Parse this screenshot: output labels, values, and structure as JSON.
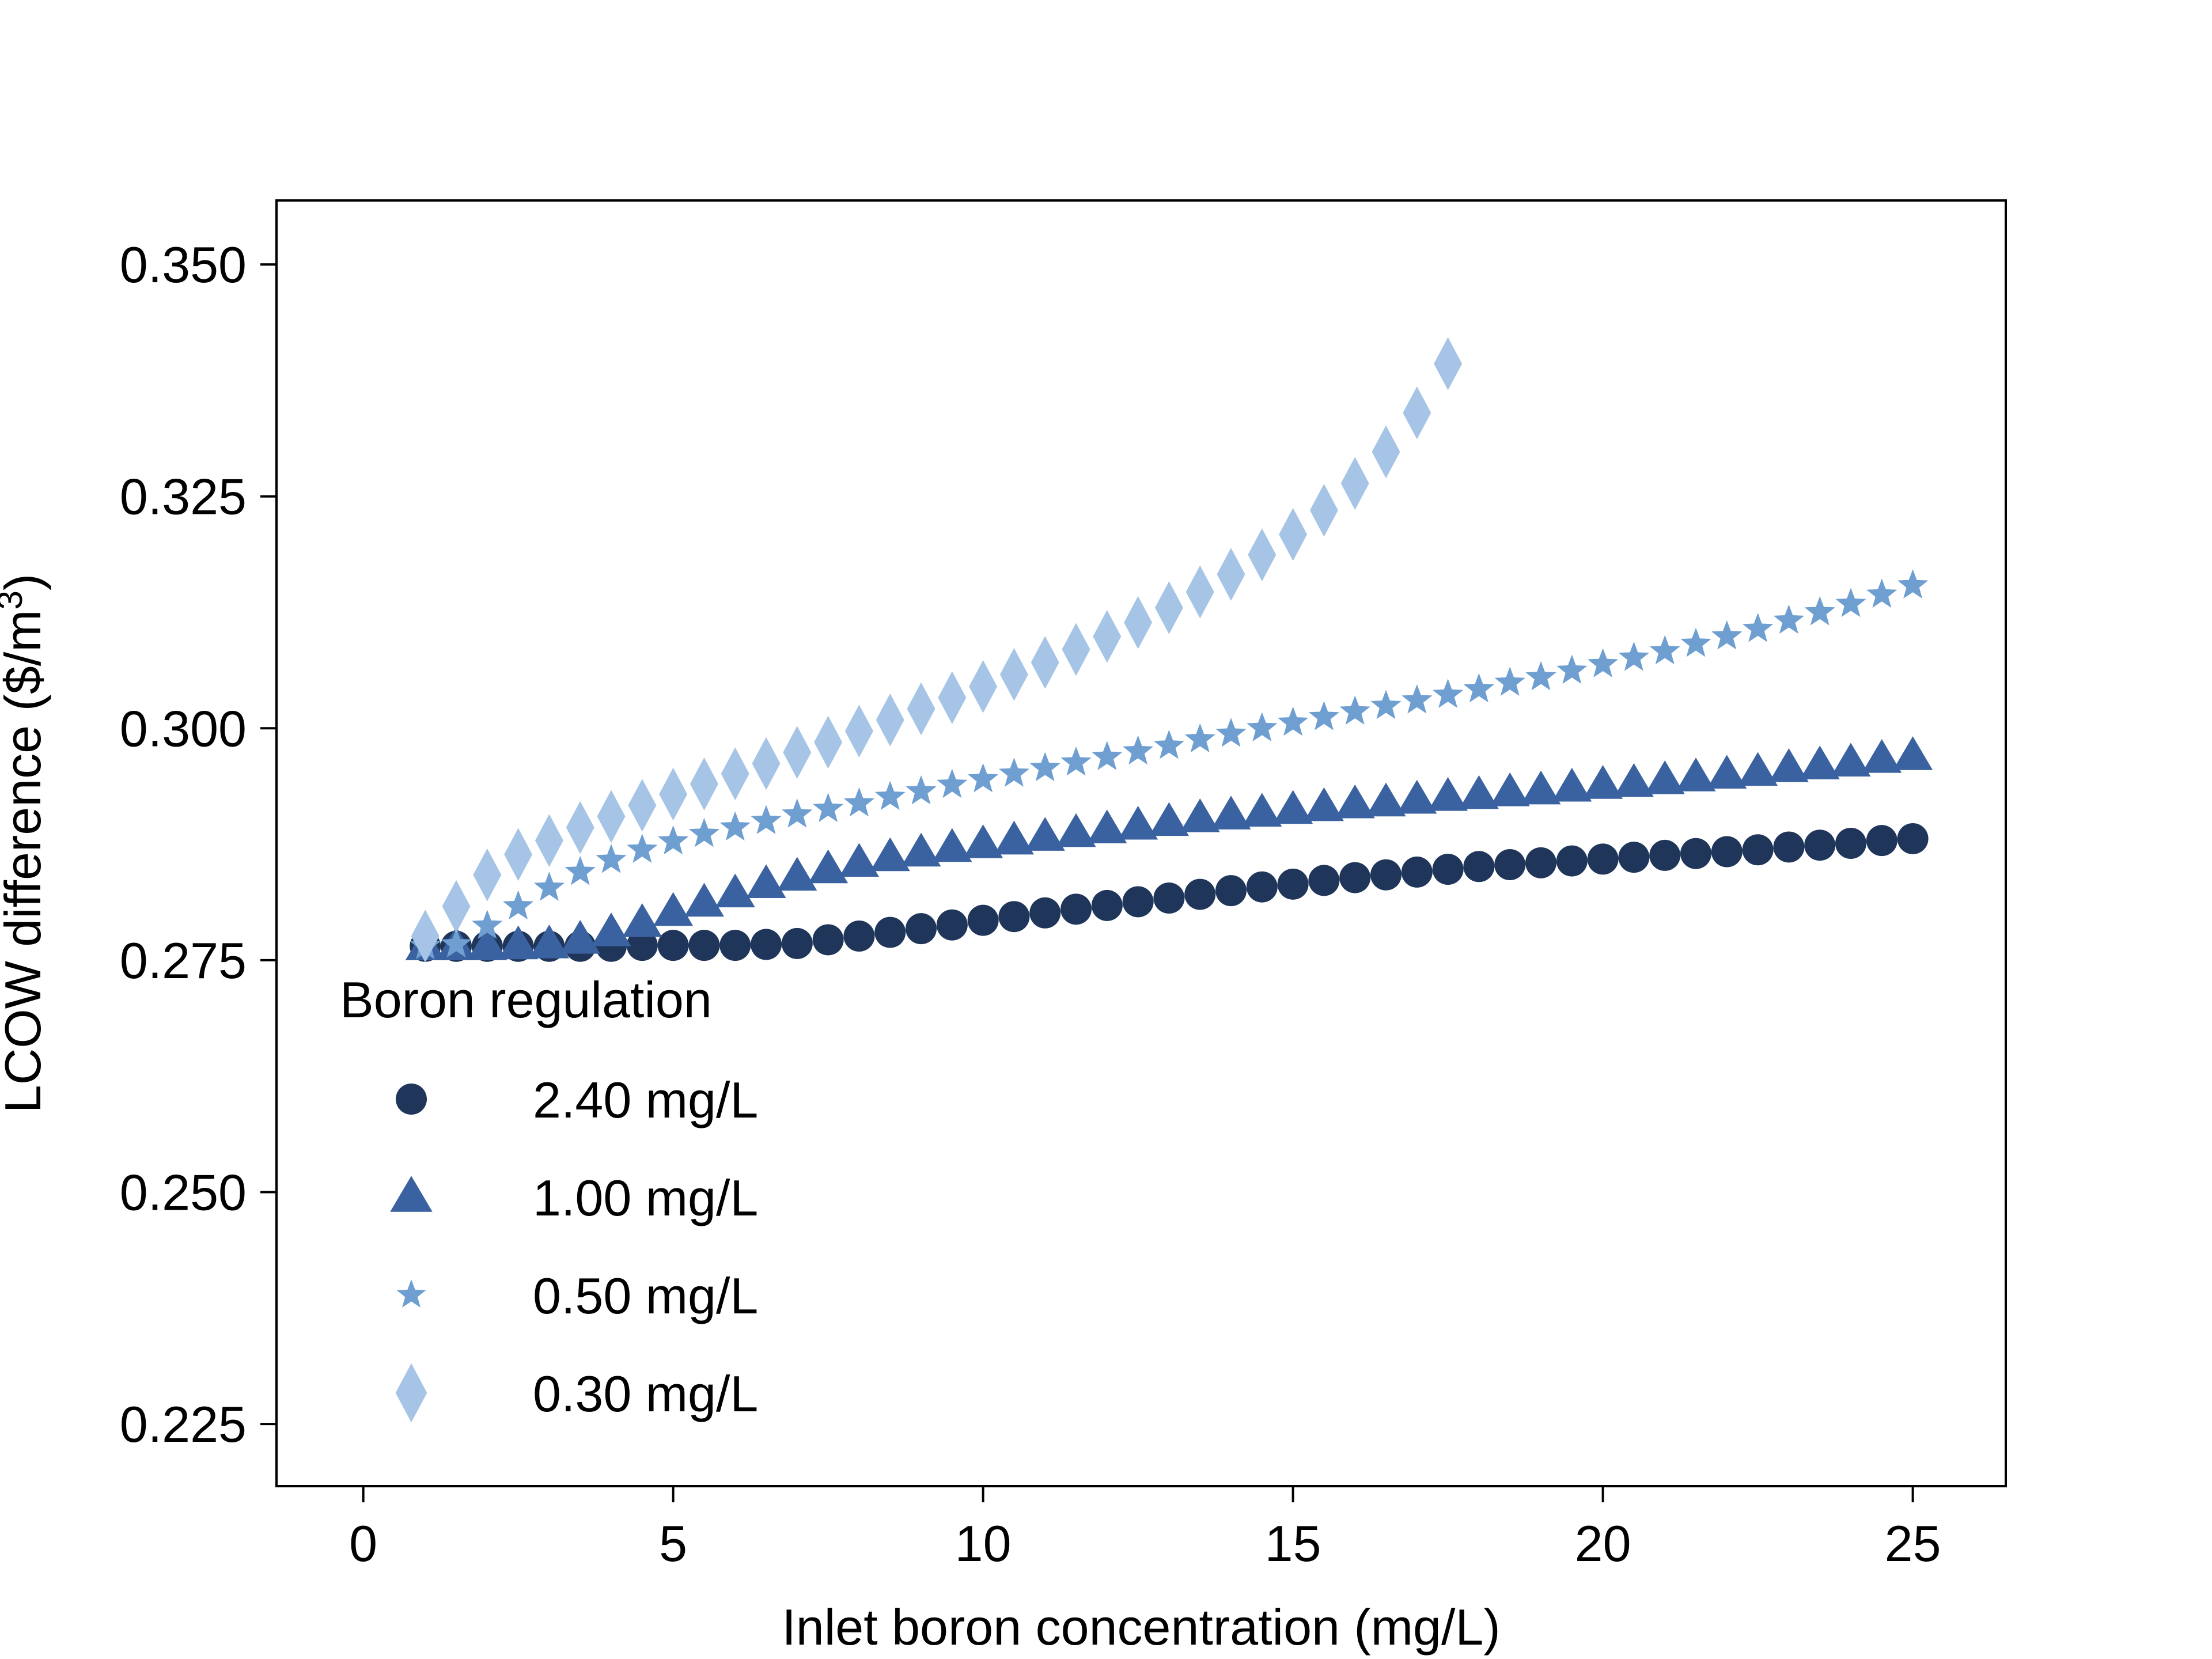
{
  "chart_data": {
    "type": "scatter",
    "title": "",
    "xlabel": "Inlet boron concentration (mg/L)",
    "ylabel_main": "LCOW difference ($/m",
    "ylabel_sup": "3",
    "ylabel_end": ")",
    "xlim": [
      -1.4,
      26.5
    ],
    "ylim": [
      0.2183,
      0.3569
    ],
    "xticks": [
      0,
      5,
      10,
      15,
      20,
      25
    ],
    "xtick_labels": [
      "0",
      "5",
      "10",
      "15",
      "20",
      "25"
    ],
    "yticks": [
      0.225,
      0.25,
      0.275,
      0.3,
      0.325,
      0.35
    ],
    "ytick_labels": [
      "0.225",
      "0.250",
      "0.275",
      "0.300",
      "0.325",
      "0.350"
    ],
    "grid": false,
    "legend": {
      "title": "Boron regulation",
      "placement": "lower-left"
    },
    "series": [
      {
        "name": "2.40 mg/L",
        "marker": "circle",
        "color": "#1f3559",
        "x": [
          1.0,
          1.5,
          2.0,
          2.5,
          3.0,
          3.5,
          4.0,
          4.5,
          5.0,
          5.5,
          6.0,
          6.5,
          7.0,
          7.5,
          8.0,
          8.5,
          9.0,
          9.5,
          10.0,
          10.5,
          11.0,
          11.5,
          12.0,
          12.5,
          13.0,
          13.5,
          14.0,
          14.5,
          15.0,
          15.5,
          16.0,
          16.5,
          17.0,
          17.5,
          18.0,
          18.5,
          19.0,
          19.5,
          20.0,
          20.5,
          21.0,
          21.5,
          22.0,
          22.5,
          23.0,
          23.5,
          24.0,
          24.5,
          25.0
        ],
        "y": [
          0.2765,
          0.2765,
          0.2765,
          0.2765,
          0.2765,
          0.2765,
          0.2765,
          0.2766,
          0.2766,
          0.2766,
          0.2766,
          0.2767,
          0.2768,
          0.2772,
          0.2776,
          0.278,
          0.2784,
          0.2788,
          0.2793,
          0.2797,
          0.2801,
          0.2805,
          0.2809,
          0.2813,
          0.2817,
          0.2821,
          0.2825,
          0.2829,
          0.2832,
          0.2836,
          0.2839,
          0.2842,
          0.2845,
          0.2848,
          0.2851,
          0.2853,
          0.2855,
          0.2857,
          0.2859,
          0.2861,
          0.2863,
          0.2865,
          0.2867,
          0.2869,
          0.2872,
          0.2874,
          0.2876,
          0.2879,
          0.2881
        ]
      },
      {
        "name": "1.00 mg/L",
        "marker": "triangle",
        "color": "#3b62a0",
        "x": [
          1.0,
          1.5,
          2.0,
          2.5,
          3.0,
          3.5,
          4.0,
          4.5,
          5.0,
          5.5,
          6.0,
          6.5,
          7.0,
          7.5,
          8.0,
          8.5,
          9.0,
          9.5,
          10.0,
          10.5,
          11.0,
          11.5,
          12.0,
          12.5,
          13.0,
          13.5,
          14.0,
          14.5,
          15.0,
          15.5,
          16.0,
          16.5,
          17.0,
          17.5,
          18.0,
          18.5,
          19.0,
          19.5,
          20.0,
          20.5,
          21.0,
          21.5,
          22.0,
          22.5,
          23.0,
          23.5,
          24.0,
          24.5,
          25.0
        ],
        "y": [
          0.2765,
          0.2765,
          0.2765,
          0.2766,
          0.2767,
          0.2772,
          0.278,
          0.279,
          0.2802,
          0.2812,
          0.2822,
          0.2832,
          0.284,
          0.2848,
          0.2855,
          0.2861,
          0.2866,
          0.2871,
          0.2875,
          0.2879,
          0.2883,
          0.2887,
          0.2891,
          0.2895,
          0.2899,
          0.2903,
          0.2906,
          0.2909,
          0.2912,
          0.2915,
          0.2918,
          0.292,
          0.2923,
          0.2926,
          0.2928,
          0.2931,
          0.2933,
          0.2936,
          0.2939,
          0.2941,
          0.2944,
          0.2947,
          0.295,
          0.2953,
          0.2957,
          0.296,
          0.2963,
          0.2967,
          0.297
        ]
      },
      {
        "name": "0.50 mg/L",
        "marker": "star",
        "color": "#6f9fd1",
        "x": [
          1.0,
          1.5,
          2.0,
          2.5,
          3.0,
          3.5,
          4.0,
          4.5,
          5.0,
          5.5,
          6.0,
          6.5,
          7.0,
          7.5,
          8.0,
          8.5,
          9.0,
          9.5,
          10.0,
          10.5,
          11.0,
          11.5,
          12.0,
          12.5,
          13.0,
          13.5,
          14.0,
          14.5,
          15.0,
          15.5,
          16.0,
          16.5,
          17.0,
          17.5,
          18.0,
          18.5,
          19.0,
          19.5,
          20.0,
          20.5,
          21.0,
          21.5,
          22.0,
          22.5,
          23.0,
          23.5,
          24.0,
          24.5,
          25.0
        ],
        "y": [
          0.2765,
          0.2767,
          0.2787,
          0.2808,
          0.2828,
          0.2845,
          0.2858,
          0.2869,
          0.2878,
          0.2886,
          0.2893,
          0.29,
          0.2907,
          0.2913,
          0.2919,
          0.2926,
          0.2932,
          0.2939,
          0.2945,
          0.2951,
          0.2957,
          0.2963,
          0.2969,
          0.2975,
          0.2981,
          0.2988,
          0.2994,
          0.3,
          0.3006,
          0.3012,
          0.3018,
          0.3024,
          0.303,
          0.3036,
          0.3042,
          0.3049,
          0.3055,
          0.3062,
          0.3069,
          0.3076,
          0.3083,
          0.3091,
          0.3099,
          0.3107,
          0.3116,
          0.3125,
          0.3134,
          0.3144,
          0.3154
        ]
      },
      {
        "name": "0.30 mg/L",
        "marker": "diamond",
        "color": "#a6c4e5",
        "x": [
          1.0,
          1.5,
          2.0,
          2.5,
          3.0,
          3.5,
          4.0,
          4.5,
          5.0,
          5.5,
          6.0,
          6.5,
          7.0,
          7.5,
          8.0,
          8.5,
          9.0,
          9.5,
          10.0,
          10.5,
          11.0,
          11.5,
          12.0,
          12.5,
          13.0,
          13.5,
          14.0,
          14.5,
          15.0,
          15.5,
          16.0,
          16.5,
          17.0,
          17.5
        ],
        "y": [
          0.2776,
          0.2808,
          0.2842,
          0.2864,
          0.2879,
          0.2893,
          0.2905,
          0.2917,
          0.2929,
          0.294,
          0.2951,
          0.2962,
          0.2974,
          0.2985,
          0.2997,
          0.3009,
          0.3021,
          0.3033,
          0.3045,
          0.3058,
          0.3071,
          0.3085,
          0.3099,
          0.3114,
          0.313,
          0.3147,
          0.3166,
          0.3187,
          0.3209,
          0.3235,
          0.3264,
          0.3298,
          0.334,
          0.3393
        ]
      }
    ]
  }
}
